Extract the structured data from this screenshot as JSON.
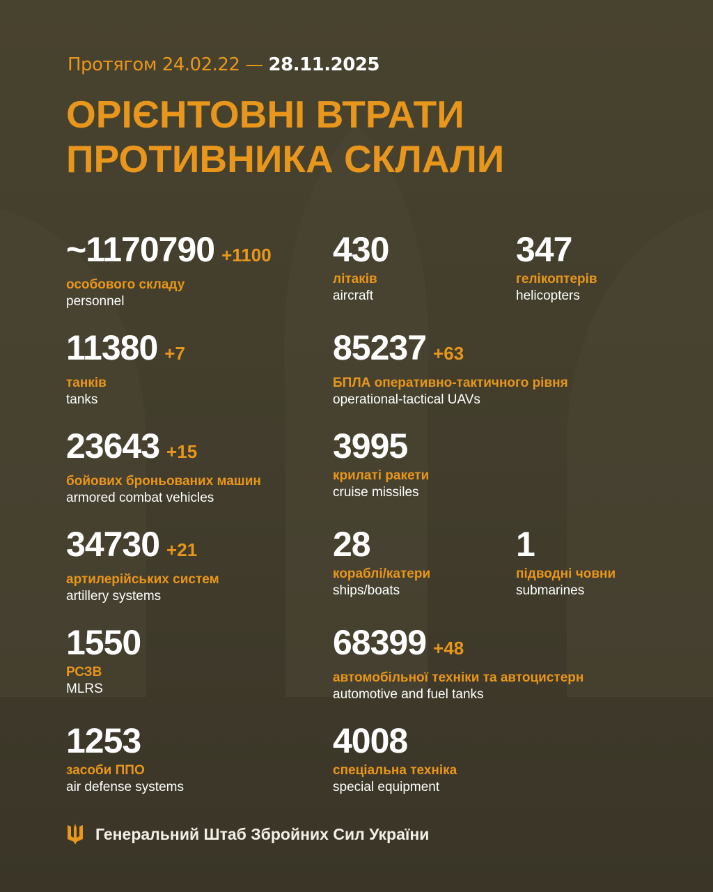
{
  "header": {
    "period_prefix": "Протягом 24.02.22 —",
    "period_end": "28.11.2025",
    "title_line1": "ОРІЄНТОВНІ ВТРАТИ",
    "title_line2": "ПРОТИВНИКА СКЛАЛИ"
  },
  "stats": [
    {
      "value": "~1170790",
      "delta": "+1100",
      "ua": "особового складу",
      "en": "personnel"
    },
    {
      "value": "430",
      "delta": "",
      "ua": "літаків",
      "en": "aircraft"
    },
    {
      "value": "347",
      "delta": "",
      "ua": "гелікоптерів",
      "en": "helicopters"
    },
    {
      "value": "11380",
      "delta": "+7",
      "ua": "танків",
      "en": "tanks"
    },
    {
      "value": "85237",
      "delta": "+63",
      "ua": "БПЛА оперативно-тактичного рівня",
      "en": "operational-tactical UAVs"
    },
    {
      "value": "23643",
      "delta": "+15",
      "ua": "бойових броньованих машин",
      "en": "armored combat vehicles"
    },
    {
      "value": "3995",
      "delta": "",
      "ua": "крилаті ракети",
      "en": "cruise missiles"
    },
    {
      "value": "34730",
      "delta": "+21",
      "ua": "артилерійських систем",
      "en": "artillery systems"
    },
    {
      "value": "28",
      "delta": "",
      "ua": "кораблі/катери",
      "en": "ships/boats"
    },
    {
      "value": "1",
      "delta": "",
      "ua": "підводні човни",
      "en": "submarines"
    },
    {
      "value": "1550",
      "delta": "",
      "ua": "РСЗВ",
      "en": "MLRS"
    },
    {
      "value": "68399",
      "delta": "+48",
      "ua": "автомобільної техніки та автоцистерн",
      "en": "automotive and fuel tanks"
    },
    {
      "value": "1253",
      "delta": "",
      "ua": "засоби ППО",
      "en": "air defense systems"
    },
    {
      "value": "4008",
      "delta": "",
      "ua": "спеціальна техніка",
      "en": "special equipment"
    }
  ],
  "footer": {
    "text": "Генеральний Штаб Збройних Сил України",
    "icon": "trident-icon"
  },
  "colors": {
    "accent": "#e8961c",
    "background": "#46412f",
    "text": "#ffffff"
  }
}
